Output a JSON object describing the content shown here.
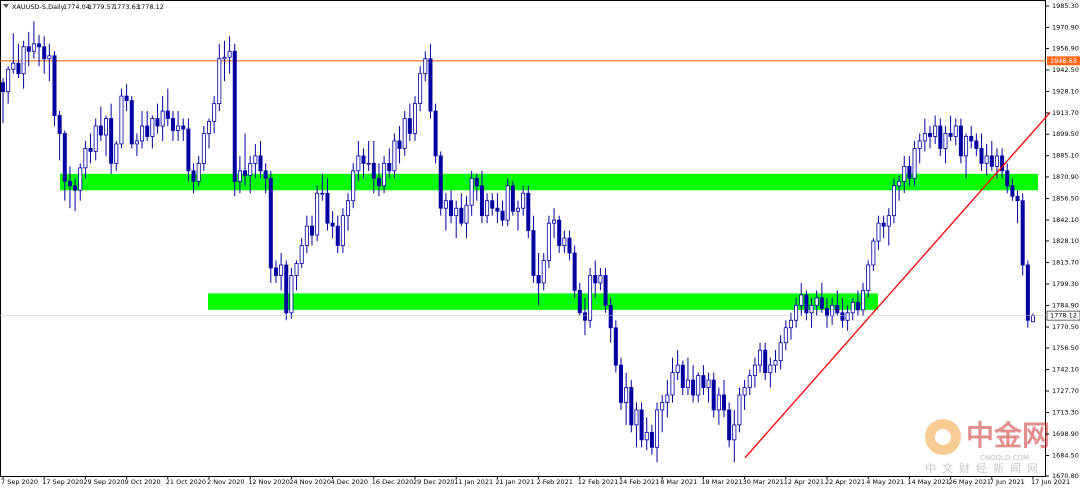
{
  "chart_data": {
    "type": "candlestick",
    "title": "XAUUSD-S,Daily",
    "categories": [
      "7 Sep 2020",
      null,
      null,
      null,
      null,
      null,
      null,
      null,
      "17 Sep 2020",
      null,
      null,
      null,
      null,
      null,
      null,
      null,
      "29 Sep 2020",
      null,
      null,
      null,
      null,
      null,
      null,
      null,
      "9 Oct 2020",
      null,
      null,
      null,
      null,
      null,
      null,
      null,
      "21 Oct 2020",
      null,
      null,
      null,
      null,
      null,
      null,
      null,
      "2 Nov 2020",
      null,
      null,
      null,
      null,
      null,
      null,
      null,
      "12 Nov 2020",
      null,
      null,
      null,
      null,
      null,
      null,
      null,
      "24 Nov 2020",
      null,
      null,
      null,
      null,
      null,
      null,
      null,
      "4 Dec 2020",
      null,
      null,
      null,
      null,
      null,
      null,
      null,
      "16 Dec 2020",
      null,
      null,
      null,
      null,
      null,
      null,
      null,
      "29 Dec 2020",
      null,
      null,
      null,
      null,
      null,
      null,
      null,
      "11 Jan 2021",
      null,
      null,
      null,
      null,
      null,
      null,
      null,
      "21 Jan 2021",
      null,
      null,
      null,
      null,
      null,
      null,
      null,
      "2 Feb 2021",
      null,
      null,
      null,
      null,
      null,
      null,
      null,
      "12 Feb 2021",
      null,
      null,
      null,
      null,
      null,
      null,
      null,
      "24 Feb 2021",
      null,
      null,
      null,
      null,
      null,
      null,
      null,
      "8 Mar 2021",
      null,
      null,
      null,
      null,
      null,
      null,
      null,
      "18 Mar 2021",
      null,
      null,
      null,
      null,
      null,
      null,
      null,
      "30 Mar 2021",
      null,
      null,
      null,
      null,
      null,
      null,
      null,
      "12 Apr 2021",
      null,
      null,
      null,
      null,
      null,
      null,
      null,
      "22 Apr 2021",
      null,
      null,
      null,
      null,
      null,
      null,
      null,
      "4 May 2021",
      null,
      null,
      null,
      null,
      null,
      null,
      null,
      "14 May 2021",
      null,
      null,
      null,
      null,
      null,
      null,
      null,
      "26 May 2021",
      null,
      null,
      null,
      null,
      null,
      null,
      null,
      "7 Jun 2021",
      null,
      null,
      null,
      null,
      null,
      null,
      null,
      "17 Jun 2021"
    ],
    "ohlc": [
      [
        1934,
        1937,
        1907,
        1928
      ],
      [
        1928,
        1945,
        1920,
        1943
      ],
      [
        1943,
        1967,
        1940,
        1947
      ],
      [
        1947,
        1960,
        1937,
        1940
      ],
      [
        1940,
        1962,
        1930,
        1958
      ],
      [
        1958,
        1968,
        1945,
        1955
      ],
      [
        1955,
        1975,
        1950,
        1960
      ],
      [
        1960,
        1966,
        1945,
        1958
      ],
      [
        1958,
        1965,
        1940,
        1950
      ],
      [
        1950,
        1960,
        1935,
        1952
      ],
      [
        1952,
        1955,
        1905,
        1912
      ],
      [
        1912,
        1915,
        1882,
        1900
      ],
      [
        1900,
        1902,
        1855,
        1868
      ],
      [
        1868,
        1878,
        1850,
        1865
      ],
      [
        1865,
        1870,
        1848,
        1862
      ],
      [
        1862,
        1880,
        1855,
        1877
      ],
      [
        1877,
        1895,
        1870,
        1890
      ],
      [
        1890,
        1900,
        1880,
        1888
      ],
      [
        1888,
        1910,
        1882,
        1905
      ],
      [
        1905,
        1918,
        1895,
        1899
      ],
      [
        1899,
        1912,
        1885,
        1910
      ],
      [
        1910,
        1920,
        1873,
        1880
      ],
      [
        1880,
        1895,
        1875,
        1893
      ],
      [
        1893,
        1930,
        1890,
        1925
      ],
      [
        1925,
        1933,
        1915,
        1922
      ],
      [
        1922,
        1925,
        1890,
        1893
      ],
      [
        1893,
        1900,
        1885,
        1895
      ],
      [
        1895,
        1915,
        1890,
        1905
      ],
      [
        1905,
        1915,
        1895,
        1898
      ],
      [
        1898,
        1912,
        1890,
        1910
      ],
      [
        1910,
        1920,
        1900,
        1905
      ],
      [
        1905,
        1925,
        1895,
        1915
      ],
      [
        1915,
        1930,
        1905,
        1910
      ],
      [
        1910,
        1915,
        1895,
        1902
      ],
      [
        1902,
        1915,
        1895,
        1905
      ],
      [
        1905,
        1910,
        1895,
        1903
      ],
      [
        1903,
        1910,
        1868,
        1875
      ],
      [
        1875,
        1880,
        1860,
        1868
      ],
      [
        1868,
        1885,
        1865,
        1880
      ],
      [
        1880,
        1905,
        1875,
        1900
      ],
      [
        1900,
        1910,
        1890,
        1908
      ],
      [
        1908,
        1925,
        1900,
        1920
      ],
      [
        1920,
        1960,
        1915,
        1950
      ],
      [
        1950,
        1962,
        1935,
        1951
      ],
      [
        1951,
        1965,
        1940,
        1955
      ],
      [
        1955,
        1960,
        1858,
        1868
      ],
      [
        1868,
        1885,
        1860,
        1875
      ],
      [
        1875,
        1900,
        1865,
        1872
      ],
      [
        1872,
        1885,
        1860,
        1880
      ],
      [
        1880,
        1893,
        1870,
        1885
      ],
      [
        1885,
        1895,
        1870,
        1875
      ],
      [
        1875,
        1880,
        1860,
        1870
      ],
      [
        1870,
        1875,
        1800,
        1810
      ],
      [
        1810,
        1815,
        1800,
        1805
      ],
      [
        1805,
        1820,
        1795,
        1812
      ],
      [
        1812,
        1815,
        1775,
        1780
      ],
      [
        1780,
        1810,
        1776,
        1805
      ],
      [
        1805,
        1815,
        1795,
        1813
      ],
      [
        1813,
        1830,
        1810,
        1825
      ],
      [
        1825,
        1845,
        1820,
        1838
      ],
      [
        1838,
        1845,
        1825,
        1832
      ],
      [
        1832,
        1865,
        1828,
        1860
      ],
      [
        1860,
        1873,
        1855,
        1860
      ],
      [
        1860,
        1870,
        1835,
        1840
      ],
      [
        1840,
        1848,
        1830,
        1838
      ],
      [
        1838,
        1845,
        1820,
        1825
      ],
      [
        1825,
        1850,
        1820,
        1845
      ],
      [
        1845,
        1860,
        1835,
        1855
      ],
      [
        1855,
        1880,
        1850,
        1875
      ],
      [
        1875,
        1895,
        1868,
        1885
      ],
      [
        1885,
        1890,
        1870,
        1880
      ],
      [
        1880,
        1895,
        1875,
        1880
      ],
      [
        1880,
        1895,
        1860,
        1870
      ],
      [
        1870,
        1880,
        1858,
        1865
      ],
      [
        1865,
        1885,
        1860,
        1880
      ],
      [
        1880,
        1890,
        1870,
        1875
      ],
      [
        1875,
        1900,
        1870,
        1895
      ],
      [
        1895,
        1905,
        1880,
        1890
      ],
      [
        1890,
        1915,
        1885,
        1910
      ],
      [
        1910,
        1920,
        1895,
        1900
      ],
      [
        1900,
        1925,
        1895,
        1920
      ],
      [
        1920,
        1945,
        1915,
        1940
      ],
      [
        1940,
        1955,
        1935,
        1950
      ],
      [
        1950,
        1960,
        1910,
        1915
      ],
      [
        1915,
        1920,
        1880,
        1885
      ],
      [
        1885,
        1888,
        1845,
        1850
      ],
      [
        1850,
        1860,
        1835,
        1855
      ],
      [
        1855,
        1862,
        1840,
        1845
      ],
      [
        1845,
        1855,
        1830,
        1850
      ],
      [
        1850,
        1860,
        1838,
        1840
      ],
      [
        1840,
        1858,
        1830,
        1852
      ],
      [
        1852,
        1875,
        1845,
        1870
      ],
      [
        1870,
        1873,
        1855,
        1865
      ],
      [
        1865,
        1875,
        1840,
        1845
      ],
      [
        1845,
        1860,
        1840,
        1855
      ],
      [
        1855,
        1860,
        1845,
        1850
      ],
      [
        1850,
        1860,
        1840,
        1848
      ],
      [
        1848,
        1855,
        1838,
        1842
      ],
      [
        1842,
        1870,
        1838,
        1865
      ],
      [
        1865,
        1868,
        1845,
        1848
      ],
      [
        1848,
        1855,
        1835,
        1850
      ],
      [
        1850,
        1865,
        1845,
        1860
      ],
      [
        1860,
        1865,
        1830,
        1835
      ],
      [
        1835,
        1845,
        1800,
        1805
      ],
      [
        1805,
        1820,
        1785,
        1800
      ],
      [
        1800,
        1820,
        1795,
        1815
      ],
      [
        1815,
        1845,
        1810,
        1840
      ],
      [
        1840,
        1850,
        1830,
        1842
      ],
      [
        1842,
        1845,
        1820,
        1825
      ],
      [
        1825,
        1835,
        1820,
        1830
      ],
      [
        1830,
        1835,
        1815,
        1820
      ],
      [
        1820,
        1825,
        1790,
        1795
      ],
      [
        1795,
        1800,
        1778,
        1780
      ],
      [
        1780,
        1790,
        1765,
        1775
      ],
      [
        1775,
        1810,
        1770,
        1805
      ],
      [
        1805,
        1815,
        1790,
        1800
      ],
      [
        1800,
        1810,
        1795,
        1805
      ],
      [
        1805,
        1810,
        1780,
        1785
      ],
      [
        1785,
        1790,
        1760,
        1770
      ],
      [
        1770,
        1775,
        1740,
        1745
      ],
      [
        1745,
        1750,
        1715,
        1720
      ],
      [
        1720,
        1740,
        1705,
        1730
      ],
      [
        1730,
        1735,
        1700,
        1705
      ],
      [
        1705,
        1720,
        1690,
        1715
      ],
      [
        1715,
        1720,
        1690,
        1695
      ],
      [
        1695,
        1710,
        1688,
        1700
      ],
      [
        1700,
        1705,
        1685,
        1690
      ],
      [
        1690,
        1720,
        1680,
        1715
      ],
      [
        1715,
        1725,
        1700,
        1720
      ],
      [
        1720,
        1735,
        1710,
        1725
      ],
      [
        1725,
        1750,
        1720,
        1740
      ],
      [
        1740,
        1755,
        1735,
        1745
      ],
      [
        1745,
        1748,
        1725,
        1730
      ],
      [
        1730,
        1750,
        1725,
        1735
      ],
      [
        1735,
        1745,
        1720,
        1725
      ],
      [
        1725,
        1740,
        1720,
        1738
      ],
      [
        1738,
        1745,
        1725,
        1730
      ],
      [
        1730,
        1740,
        1720,
        1735
      ],
      [
        1735,
        1740,
        1710,
        1715
      ],
      [
        1715,
        1730,
        1705,
        1725
      ],
      [
        1725,
        1735,
        1710,
        1715
      ],
      [
        1715,
        1720,
        1690,
        1695
      ],
      [
        1695,
        1715,
        1680,
        1705
      ],
      [
        1705,
        1730,
        1700,
        1725
      ],
      [
        1725,
        1735,
        1715,
        1730
      ],
      [
        1730,
        1742,
        1725,
        1738
      ],
      [
        1738,
        1750,
        1730,
        1745
      ],
      [
        1745,
        1760,
        1740,
        1755
      ],
      [
        1755,
        1760,
        1735,
        1740
      ],
      [
        1740,
        1750,
        1730,
        1745
      ],
      [
        1745,
        1755,
        1740,
        1748
      ],
      [
        1748,
        1765,
        1742,
        1760
      ],
      [
        1760,
        1775,
        1755,
        1770
      ],
      [
        1770,
        1780,
        1762,
        1775
      ],
      [
        1775,
        1790,
        1770,
        1785
      ],
      [
        1785,
        1800,
        1778,
        1792
      ],
      [
        1792,
        1795,
        1775,
        1780
      ],
      [
        1780,
        1790,
        1770,
        1785
      ],
      [
        1785,
        1795,
        1778,
        1790
      ],
      [
        1790,
        1800,
        1780,
        1783
      ],
      [
        1783,
        1790,
        1770,
        1778
      ],
      [
        1778,
        1790,
        1772,
        1785
      ],
      [
        1785,
        1795,
        1778,
        1780
      ],
      [
        1780,
        1790,
        1770,
        1775
      ],
      [
        1775,
        1785,
        1768,
        1780
      ],
      [
        1780,
        1790,
        1775,
        1787
      ],
      [
        1787,
        1795,
        1778,
        1782
      ],
      [
        1782,
        1800,
        1778,
        1795
      ],
      [
        1795,
        1815,
        1790,
        1812
      ],
      [
        1812,
        1830,
        1808,
        1828
      ],
      [
        1828,
        1845,
        1822,
        1840
      ],
      [
        1840,
        1845,
        1830,
        1838
      ],
      [
        1838,
        1850,
        1825,
        1845
      ],
      [
        1845,
        1870,
        1840,
        1865
      ],
      [
        1865,
        1872,
        1855,
        1868
      ],
      [
        1868,
        1885,
        1860,
        1878
      ],
      [
        1878,
        1885,
        1865,
        1870
      ],
      [
        1870,
        1895,
        1865,
        1890
      ],
      [
        1890,
        1900,
        1880,
        1895
      ],
      [
        1895,
        1910,
        1888,
        1900
      ],
      [
        1900,
        1905,
        1890,
        1898
      ],
      [
        1898,
        1912,
        1893,
        1905
      ],
      [
        1905,
        1910,
        1885,
        1890
      ],
      [
        1890,
        1905,
        1880,
        1900
      ],
      [
        1900,
        1912,
        1895,
        1898
      ],
      [
        1898,
        1910,
        1892,
        1905
      ],
      [
        1905,
        1910,
        1880,
        1885
      ],
      [
        1885,
        1900,
        1870,
        1898
      ],
      [
        1898,
        1905,
        1890,
        1895
      ],
      [
        1895,
        1900,
        1885,
        1890
      ],
      [
        1890,
        1900,
        1875,
        1880
      ],
      [
        1880,
        1893,
        1872,
        1885
      ],
      [
        1885,
        1895,
        1875,
        1878
      ],
      [
        1878,
        1890,
        1870,
        1885
      ],
      [
        1885,
        1890,
        1870,
        1875
      ],
      [
        1875,
        1880,
        1860,
        1865
      ],
      [
        1865,
        1870,
        1855,
        1858
      ],
      [
        1858,
        1862,
        1840,
        1855
      ],
      [
        1855,
        1860,
        1805,
        1812
      ],
      [
        1812,
        1815,
        1770,
        1775
      ],
      [
        1774.04,
        1779.57,
        1773.63,
        1778.12
      ]
    ],
    "color": "#0000a0",
    "ylim": [
      1670.8,
      1985.3
    ],
    "yticks": [
      {
        "value": 1985.3,
        "label": "1985.30"
      },
      {
        "value": 1970.9,
        "label": "1970.90"
      },
      {
        "value": 1956.9,
        "label": "1956.90"
      },
      {
        "value": 1942.5,
        "label": "1942.50"
      },
      {
        "value": 1928.1,
        "label": "1928.10"
      },
      {
        "value": 1913.7,
        "label": "1913.70"
      },
      {
        "value": 1899.5,
        "label": "1899.50"
      },
      {
        "value": 1885.1,
        "label": "1885.10"
      },
      {
        "value": 1870.9,
        "label": "1870.90"
      },
      {
        "value": 1856.5,
        "label": "1856.50"
      },
      {
        "value": 1842.1,
        "label": "1842.10"
      },
      {
        "value": 1828.1,
        "label": "1828.10"
      },
      {
        "value": 1813.7,
        "label": "1813.70"
      },
      {
        "value": 1799.3,
        "label": "1799.30"
      },
      {
        "value": 1784.9,
        "label": "1784.90"
      },
      {
        "value": 1770.5,
        "label": "1770.50"
      },
      {
        "value": 1756.5,
        "label": "1756.50"
      },
      {
        "value": 1742.1,
        "label": "1742.10"
      },
      {
        "value": 1727.7,
        "label": "1727.70"
      },
      {
        "value": 1713.3,
        "label": "1713.30"
      },
      {
        "value": 1698.9,
        "label": "1698.90"
      },
      {
        "value": 1684.5,
        "label": "1684.50"
      },
      {
        "value": 1670.8,
        "label": "1670.80"
      }
    ],
    "level": {
      "value": 1948.63,
      "label": "1948.63",
      "color": "#ff6a1a"
    },
    "zones": [
      {
        "low": 1862,
        "high": 1873,
        "color": "#00ff00"
      },
      {
        "low": 1782,
        "high": 1793,
        "color": "#00ff00"
      }
    ],
    "trendline": {
      "prices": [
        1683,
        1914
      ],
      "color": "#ff0000"
    },
    "watermark": {
      "title": "中金网",
      "site": "CNGOLD.COM",
      "subtitle": "中文财经新闻网"
    }
  }
}
